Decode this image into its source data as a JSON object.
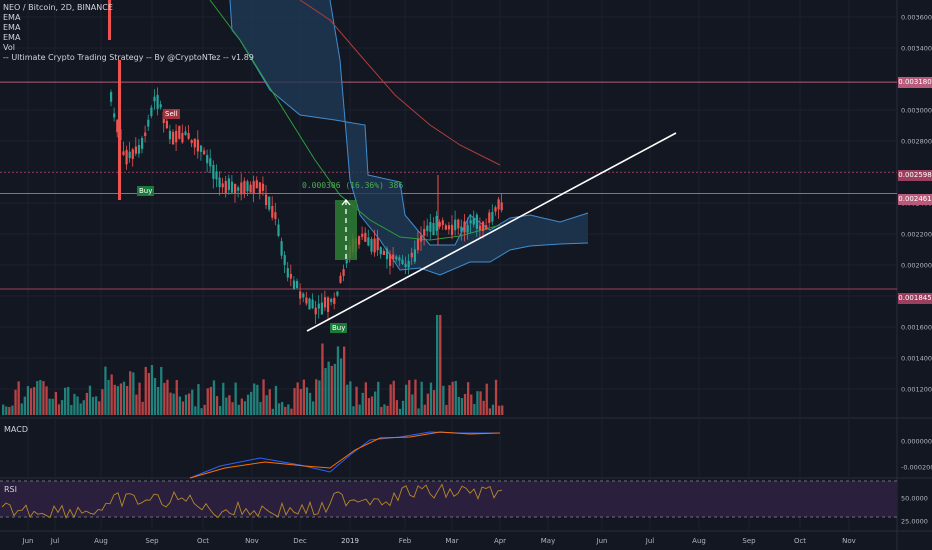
{
  "header": {
    "symbol_line": "NEO / Bitcoin, 2D, BINANCE",
    "indicators": [
      "EMA",
      "EMA",
      "EMA",
      "Vol",
      "-- Ultimate Crypto Trading Strategy -- By @CryptoNTez -- v1.89"
    ]
  },
  "price_axis": {
    "ticks": [
      "0.003600",
      "0.003400",
      "0.003000",
      "0.002800",
      "0.002400",
      "0.002200",
      "0.002000",
      "0.001800",
      "0.001600",
      "0.001400",
      "0.001200"
    ],
    "tick_values": [
      0.0036,
      0.0034,
      0.003,
      0.0028,
      0.0024,
      0.0022,
      0.002,
      0.0018,
      0.0016,
      0.0014,
      0.0012
    ]
  },
  "level_tags": [
    {
      "label": "0.003180",
      "value": 0.00318,
      "color": "#b85a79"
    },
    {
      "label": "0.002598",
      "value": 0.002598,
      "color": "#9c3f5f"
    },
    {
      "label": "0.002461",
      "value": 0.002461,
      "color": "#b85a79"
    },
    {
      "label": "0.001845",
      "value": 0.001845,
      "color": "#9c3f5f"
    }
  ],
  "signals": [
    {
      "label": "Buy",
      "color": "#1b7a3a"
    },
    {
      "label": "Sell",
      "color": "#a0333d"
    },
    {
      "label": "Buy",
      "color": "#1b7a3a"
    }
  ],
  "measure": {
    "text": "0.000306 (16.36%) 386"
  },
  "macd": {
    "label": "MACD",
    "ticks": [
      "0.000000",
      "-0.000200"
    ],
    "tick_values": [
      0,
      -0.0002
    ]
  },
  "rsi": {
    "label": "RSI",
    "ticks": [
      "50.0000",
      "25.0000"
    ],
    "tick_values": [
      50,
      25
    ]
  },
  "time_axis": {
    "labels": [
      "Jun",
      "Jul",
      "Aug",
      "Sep",
      "Oct",
      "Nov",
      "Dec",
      "2019",
      "Feb",
      "Mar",
      "Apr",
      "May",
      "Jun",
      "Jul",
      "Aug",
      "Sep",
      "Oct",
      "Nov"
    ]
  },
  "colors": {
    "background": "#131722",
    "up_candle": "#26a69a",
    "down_candle": "#ef5350",
    "cloud_fill": "#1f3a56",
    "cloud_line": "#3e8ed0",
    "ema_green": "#2e9c3b",
    "ema_red": "#b23b3b",
    "trendline": "#ffffff",
    "macd_line": "#2962ff",
    "signal_line": "#ff6d00",
    "rsi_line": "#b58a2a",
    "rsi_band": "#2a1f3d"
  }
}
